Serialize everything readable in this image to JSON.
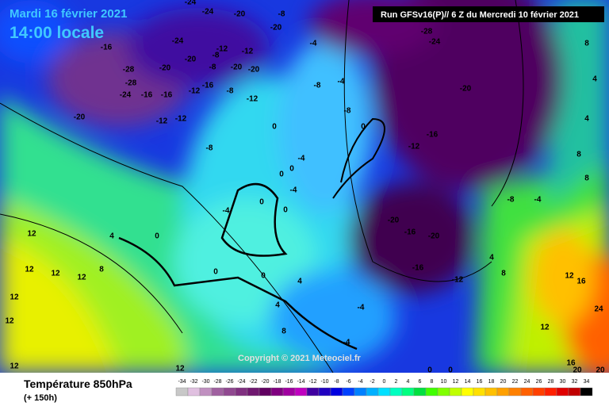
{
  "header": {
    "date": "Mardi 16 février 2021",
    "time": "14:00 locale",
    "run": "Run GFSv16(P)// 6 Z du Mercredi 10 février 2021",
    "copyright": "Copyright © 2021 Meteociel.fr"
  },
  "footer": {
    "title": "Température 850hPa",
    "lead": "(+ 150h)"
  },
  "legend": {
    "values": [
      -34,
      -32,
      -30,
      -28,
      -26,
      -24,
      -22,
      -20,
      -18,
      -16,
      -14,
      -12,
      -10,
      -8,
      -6,
      -4,
      -2,
      0,
      2,
      4,
      6,
      8,
      10,
      12,
      14,
      16,
      18,
      20,
      22,
      24,
      26,
      28,
      30,
      32,
      34
    ],
    "colors": [
      "#c8c8c8",
      "#e0c0e0",
      "#c090c0",
      "#a060a0",
      "#904890",
      "#803080",
      "#701870",
      "#600060",
      "#800080",
      "#a000a0",
      "#c000c0",
      "#4000a0",
      "#2000c0",
      "#0000e0",
      "#0040ff",
      "#0080ff",
      "#00b0ff",
      "#00e0ff",
      "#00ffc0",
      "#00ff80",
      "#00e040",
      "#40ff00",
      "#80ff00",
      "#c0ff00",
      "#ffff00",
      "#ffe000",
      "#ffc000",
      "#ffa000",
      "#ff8000",
      "#ff6000",
      "#ff4000",
      "#ff2000",
      "#e00000",
      "#c00000",
      "#000000"
    ]
  },
  "map_labels": [
    -24,
    -24,
    -20,
    -8,
    -20,
    -16,
    -24,
    -20,
    -8,
    -12,
    -12,
    -28,
    -20,
    -8,
    -20,
    -20,
    -28,
    -24,
    -16,
    -16,
    -12,
    -16,
    -8,
    -12,
    -20,
    -12,
    -12,
    -8,
    0,
    -4,
    -4,
    -8,
    -8,
    0,
    -28,
    -24,
    -20,
    -16,
    -12,
    -8,
    -4,
    -20,
    -16,
    -20,
    -16,
    -12,
    8,
    8,
    8,
    4,
    4,
    12,
    4,
    0,
    0,
    0,
    4,
    4,
    8,
    12,
    12,
    12,
    8,
    12,
    12,
    12,
    12,
    -4,
    -4,
    12,
    16,
    12,
    16,
    20,
    20,
    24,
    0,
    0,
    4,
    8,
    -4,
    -4,
    0,
    0,
    -4,
    0,
    0
  ]
}
